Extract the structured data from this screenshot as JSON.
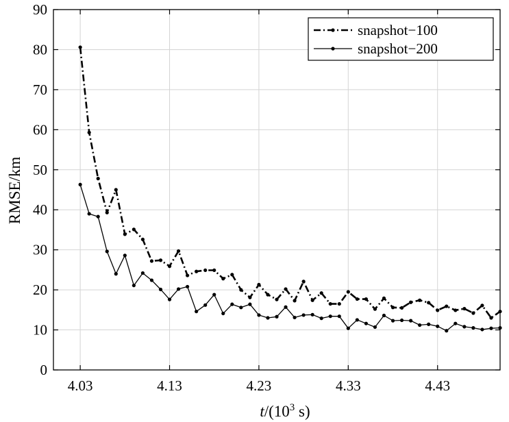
{
  "chart_data": {
    "type": "line",
    "title": "",
    "xlabel_italic": "t",
    "xlabel_rest": "/(10",
    "xlabel_sup": "3",
    "xlabel_unit": " s)",
    "ylabel": "RMSE/km",
    "xlim": [
      4.0,
      4.5
    ],
    "ylim": [
      0,
      90
    ],
    "xticks": [
      4.03,
      4.13,
      4.23,
      4.33,
      4.43
    ],
    "xtick_labels": [
      "4.03",
      "4.13",
      "4.23",
      "4.33",
      "4.43"
    ],
    "yticks": [
      0,
      10,
      20,
      30,
      40,
      50,
      60,
      70,
      80,
      90
    ],
    "ytick_labels": [
      "0",
      "10",
      "20",
      "30",
      "40",
      "50",
      "60",
      "70",
      "80",
      "90"
    ],
    "grid": true,
    "legend_position": "top-right",
    "x": [
      4.03,
      4.04,
      4.05,
      4.06,
      4.07,
      4.08,
      4.09,
      4.1,
      4.11,
      4.12,
      4.13,
      4.14,
      4.15,
      4.16,
      4.17,
      4.18,
      4.19,
      4.2,
      4.21,
      4.22,
      4.23,
      4.24,
      4.25,
      4.26,
      4.27,
      4.28,
      4.29,
      4.3,
      4.31,
      4.32,
      4.33,
      4.34,
      4.35,
      4.36,
      4.37,
      4.38,
      4.39,
      4.4,
      4.41,
      4.42,
      4.43,
      4.44,
      4.45,
      4.46,
      4.47,
      4.48,
      4.49,
      4.5
    ],
    "series": [
      {
        "name": "snapshot−100",
        "style": "dash-dot",
        "color": "#000000",
        "values": [
          80.6,
          59.3,
          47.8,
          39.3,
          45.0,
          33.9,
          35.1,
          32.6,
          27.2,
          27.4,
          25.9,
          29.7,
          23.6,
          24.6,
          24.9,
          24.9,
          22.8,
          23.8,
          20.0,
          18.1,
          21.3,
          18.8,
          17.6,
          20.2,
          17.3,
          22.1,
          17.4,
          19.2,
          16.5,
          16.5,
          19.5,
          17.7,
          17.7,
          15.2,
          17.9,
          15.6,
          15.5,
          16.9,
          17.4,
          16.8,
          14.9,
          15.9,
          14.9,
          15.3,
          14.2,
          16.1,
          13.0,
          14.6
        ]
      },
      {
        "name": "snapshot−200",
        "style": "solid",
        "color": "#000000",
        "values": [
          46.3,
          39.0,
          38.3,
          29.6,
          24.0,
          28.6,
          21.1,
          24.2,
          22.4,
          20.1,
          17.6,
          20.2,
          20.8,
          14.6,
          16.2,
          18.8,
          14.1,
          16.4,
          15.6,
          16.4,
          13.7,
          13.0,
          13.3,
          15.7,
          13.1,
          13.7,
          13.8,
          12.9,
          13.4,
          13.4,
          10.4,
          12.5,
          11.6,
          10.7,
          13.6,
          12.3,
          12.4,
          12.3,
          11.2,
          11.4,
          10.9,
          9.8,
          11.6,
          10.8,
          10.5,
          10.1,
          10.4,
          10.5
        ]
      }
    ]
  }
}
